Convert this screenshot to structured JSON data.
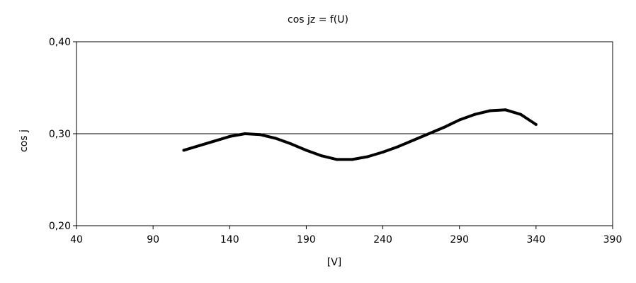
{
  "chart_data": {
    "type": "line",
    "title": "cos jz = f(U)",
    "xlabel": "[V]",
    "ylabel": "cos j",
    "xlim": [
      40,
      390
    ],
    "ylim": [
      0.2,
      0.4
    ],
    "x_ticks": [
      40,
      90,
      140,
      190,
      240,
      290,
      340,
      390
    ],
    "x_tick_labels": [
      "40",
      "90",
      "140",
      "190",
      "240",
      "290",
      "340",
      "390"
    ],
    "y_ticks": [
      0.2,
      0.3,
      0.4
    ],
    "y_tick_labels": [
      "0,20",
      "0,30",
      "0,40"
    ],
    "grid": {
      "horizontal": true,
      "vertical": false
    },
    "legend": "none",
    "line_color": "#000000",
    "series": [
      {
        "x": [
          110,
          120,
          130,
          140,
          150,
          160,
          170,
          180,
          190,
          200,
          210,
          220,
          230,
          240,
          250,
          260,
          270,
          280,
          290,
          300,
          310,
          320,
          330,
          340
        ],
        "y": [
          0.282,
          0.287,
          0.292,
          0.297,
          0.3,
          0.299,
          0.295,
          0.289,
          0.282,
          0.276,
          0.272,
          0.272,
          0.275,
          0.28,
          0.286,
          0.293,
          0.3,
          0.307,
          0.315,
          0.321,
          0.325,
          0.326,
          0.321,
          0.31
        ]
      }
    ]
  }
}
